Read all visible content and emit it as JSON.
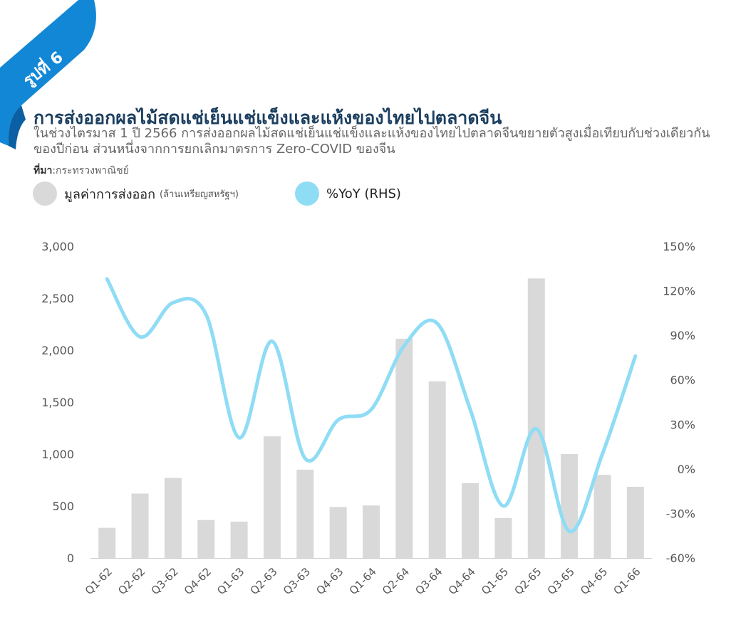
{
  "badge": {
    "text": "รูปที่ 6"
  },
  "colors": {
    "bar": "#d9d9d9",
    "line": "#8fdcf5",
    "badge": "#1287d6",
    "title": "#1c3f60"
  },
  "source": {
    "label": "ที่มา",
    "value": ":กระทรวงพาณิชย์"
  },
  "chart_data": {
    "type": "bar",
    "title": "การส่งออกผลไม้สดแช่เย็นแช่แข็งและแห้งของไทยไปตลาดจีน",
    "subtitle": "ในช่วงไตรมาส 1 ปี 2566 การส่งออกผลไม้สดแช่เย็นแช่แข็งและแห้งของไทยไปตลาดจีนขยายตัวสูงเมื่อเทียบกับช่วงเดียวกันของปีก่อน ส่วนหนึ่งจากการยกเลิกมาตรการ Zero-COVID ของจีน",
    "categories": [
      "Q1-62",
      "Q2-62",
      "Q3-62",
      "Q4-62",
      "Q1-63",
      "Q2-63",
      "Q3-63",
      "Q4-63",
      "Q1-64",
      "Q2-64",
      "Q3-64",
      "Q4-64",
      "Q1-65",
      "Q2-65",
      "Q3-65",
      "Q4-65",
      "Q1-66"
    ],
    "series": [
      {
        "name": "มูลค่าการส่งออก",
        "unit": "(ล้านเหรียญสหรัฐฯ)",
        "type": "bar",
        "axis": "left",
        "values": [
          290,
          620,
          770,
          365,
          350,
          1170,
          850,
          490,
          505,
          2110,
          1700,
          720,
          385,
          2690,
          1000,
          800,
          685
        ]
      },
      {
        "name": "%YoY (RHS)",
        "type": "line",
        "axis": "right",
        "values": [
          128,
          89,
          112,
          104,
          21,
          86,
          7,
          33,
          40,
          83,
          98,
          40,
          -25,
          27,
          -42,
          10,
          76
        ]
      }
    ],
    "y_left": {
      "lim": [
        0,
        3000
      ],
      "ticks": [
        0,
        500,
        1000,
        1500,
        2000,
        2500,
        3000
      ],
      "tick_labels": [
        "0",
        "500",
        "1,000",
        "1,500",
        "2,000",
        "2,500",
        "3,000"
      ]
    },
    "y_right": {
      "lim": [
        -60,
        150
      ],
      "ticks": [
        -60,
        -30,
        0,
        30,
        60,
        90,
        120,
        150
      ],
      "tick_labels": [
        "-60%",
        "-30%",
        "0%",
        "30%",
        "60%",
        "90%",
        "120%",
        "150%"
      ]
    },
    "legend_position": "top-left",
    "grid": false
  }
}
